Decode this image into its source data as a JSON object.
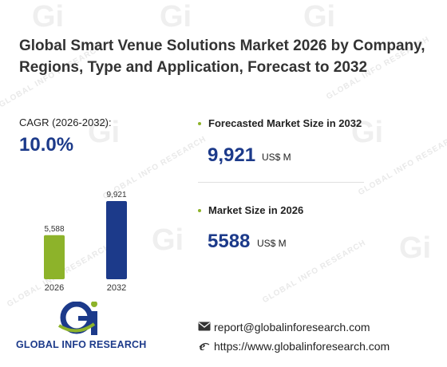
{
  "title": "Global Smart Venue Solutions Market 2026 by Company, Regions, Type and Application, Forecast to 2032",
  "cagr": {
    "label": "CAGR (2026-2032):",
    "value": "10.0%"
  },
  "forecast": {
    "label": "Forecasted Market Size in 2032",
    "value": "9,921",
    "unit": "US$ M"
  },
  "current": {
    "label": "Market Size in 2026",
    "value": "5588",
    "unit": "US$ M"
  },
  "chart_data": {
    "type": "bar",
    "categories": [
      "2026",
      "2032"
    ],
    "values": [
      5588,
      9921
    ],
    "value_labels": [
      "5,588",
      "9,921"
    ],
    "colors": [
      "#8db32a",
      "#1c3a8a"
    ]
  },
  "logo": {
    "text": "GLOBAL INFO RESEARCH",
    "mark": "Gi"
  },
  "contact": {
    "email": "report@globalinforesearch.com",
    "website": "https://www.globalinforesearch.com"
  },
  "watermark": {
    "text": "GLOBAL INFO RESEARCH",
    "mark": "Gi"
  },
  "colors": {
    "accent_blue": "#1c3a8a",
    "accent_green": "#8db32a"
  }
}
